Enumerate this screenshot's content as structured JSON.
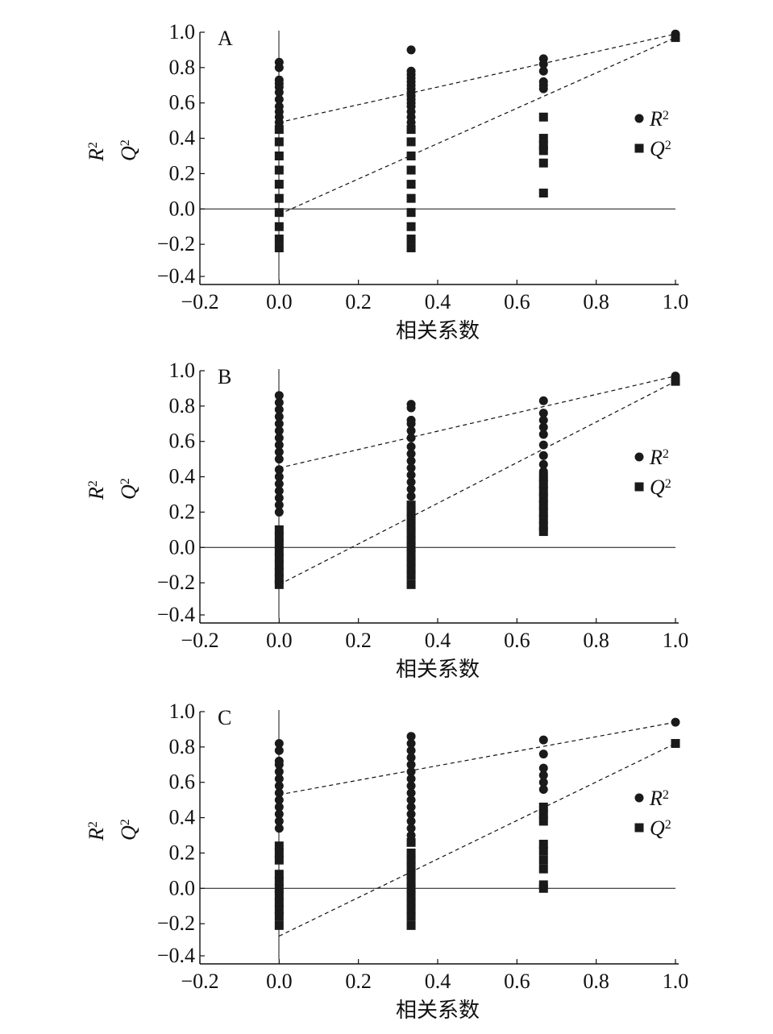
{
  "chart_data": [
    {
      "type": "scatter",
      "panel_label": "A",
      "xlabel": "相关系数",
      "ylabel_r2": "R²",
      "ylabel_q2": "Q²",
      "xlim": [
        -0.2,
        1.0
      ],
      "ylim": [
        -0.4,
        1.0
      ],
      "x_ticks": [
        "−0.2",
        "0.0",
        "0.2",
        "0.4",
        "0.6",
        "0.8",
        "1.0"
      ],
      "y_ticks": [
        "1.0",
        "0.8",
        "0.6",
        "0.4",
        "0.2",
        "0.0",
        "−0.2",
        "−0.4"
      ],
      "legend": [
        "R²",
        "Q²"
      ],
      "series": [
        {
          "name": "R²",
          "marker": "circle",
          "points": [
            [
              0.0,
              0.83
            ],
            [
              0.0,
              0.8
            ],
            [
              0.0,
              0.73
            ],
            [
              0.0,
              0.71
            ],
            [
              0.0,
              0.69
            ],
            [
              0.0,
              0.66
            ],
            [
              0.0,
              0.62
            ],
            [
              0.0,
              0.58
            ],
            [
              0.0,
              0.55
            ],
            [
              0.0,
              0.52
            ],
            [
              0.0,
              0.49
            ],
            [
              0.333,
              0.9
            ],
            [
              0.333,
              0.78
            ],
            [
              0.333,
              0.76
            ],
            [
              0.333,
              0.74
            ],
            [
              0.333,
              0.72
            ],
            [
              0.333,
              0.7
            ],
            [
              0.333,
              0.68
            ],
            [
              0.333,
              0.66
            ],
            [
              0.333,
              0.64
            ],
            [
              0.333,
              0.62
            ],
            [
              0.333,
              0.6
            ],
            [
              0.333,
              0.58
            ],
            [
              0.333,
              0.55
            ],
            [
              0.333,
              0.52
            ],
            [
              0.333,
              0.49
            ],
            [
              0.667,
              0.85
            ],
            [
              0.667,
              0.82
            ],
            [
              0.667,
              0.78
            ],
            [
              0.667,
              0.72
            ],
            [
              0.667,
              0.7
            ],
            [
              0.667,
              0.68
            ],
            [
              1.0,
              0.99
            ]
          ]
        },
        {
          "name": "Q²",
          "marker": "square",
          "points": [
            [
              0.0,
              0.45
            ],
            [
              0.0,
              0.38
            ],
            [
              0.0,
              0.3
            ],
            [
              0.0,
              0.22
            ],
            [
              0.0,
              0.14
            ],
            [
              0.0,
              0.06
            ],
            [
              0.0,
              -0.02
            ],
            [
              0.0,
              -0.1
            ],
            [
              0.0,
              -0.17
            ],
            [
              0.0,
              -0.22
            ],
            [
              0.333,
              0.45
            ],
            [
              0.333,
              0.38
            ],
            [
              0.333,
              0.3
            ],
            [
              0.333,
              0.22
            ],
            [
              0.333,
              0.14
            ],
            [
              0.333,
              0.06
            ],
            [
              0.333,
              -0.02
            ],
            [
              0.333,
              -0.1
            ],
            [
              0.333,
              -0.17
            ],
            [
              0.333,
              -0.22
            ],
            [
              0.667,
              0.52
            ],
            [
              0.667,
              0.4
            ],
            [
              0.667,
              0.36
            ],
            [
              0.667,
              0.33
            ],
            [
              0.667,
              0.26
            ],
            [
              0.667,
              0.09
            ],
            [
              1.0,
              0.97
            ]
          ]
        }
      ],
      "regression_lines": [
        [
          [
            0.0,
            0.49
          ],
          [
            1.0,
            0.99
          ]
        ],
        [
          [
            0.0,
            -0.03
          ],
          [
            1.0,
            0.97
          ]
        ]
      ]
    },
    {
      "type": "scatter",
      "panel_label": "B",
      "xlabel": "相关系数",
      "ylabel_r2": "R²",
      "ylabel_q2": "Q²",
      "xlim": [
        -0.2,
        1.0
      ],
      "ylim": [
        -0.4,
        1.0
      ],
      "x_ticks": [
        "−0.2",
        "0.0",
        "0.2",
        "0.4",
        "0.6",
        "0.8",
        "1.0"
      ],
      "y_ticks": [
        "1.0",
        "0.8",
        "0.6",
        "0.4",
        "0.2",
        "0.0",
        "−0.2",
        "−0.4"
      ],
      "legend": [
        "R²",
        "Q²"
      ],
      "series": [
        {
          "name": "R²",
          "marker": "circle",
          "points": [
            [
              0.0,
              0.86
            ],
            [
              0.0,
              0.82
            ],
            [
              0.0,
              0.78
            ],
            [
              0.0,
              0.74
            ],
            [
              0.0,
              0.7
            ],
            [
              0.0,
              0.66
            ],
            [
              0.0,
              0.62
            ],
            [
              0.0,
              0.58
            ],
            [
              0.0,
              0.54
            ],
            [
              0.0,
              0.5
            ],
            [
              0.0,
              0.44
            ],
            [
              0.0,
              0.4
            ],
            [
              0.0,
              0.36
            ],
            [
              0.0,
              0.32
            ],
            [
              0.0,
              0.28
            ],
            [
              0.0,
              0.24
            ],
            [
              0.0,
              0.2
            ],
            [
              0.333,
              0.81
            ],
            [
              0.333,
              0.79
            ],
            [
              0.333,
              0.72
            ],
            [
              0.333,
              0.7
            ],
            [
              0.333,
              0.66
            ],
            [
              0.333,
              0.62
            ],
            [
              0.333,
              0.57
            ],
            [
              0.333,
              0.53
            ],
            [
              0.333,
              0.49
            ],
            [
              0.333,
              0.45
            ],
            [
              0.333,
              0.41
            ],
            [
              0.333,
              0.37
            ],
            [
              0.333,
              0.33
            ],
            [
              0.333,
              0.29
            ],
            [
              0.667,
              0.83
            ],
            [
              0.667,
              0.76
            ],
            [
              0.667,
              0.72
            ],
            [
              0.667,
              0.68
            ],
            [
              0.667,
              0.64
            ],
            [
              0.667,
              0.58
            ],
            [
              0.667,
              0.52
            ],
            [
              0.667,
              0.47
            ],
            [
              0.667,
              0.43
            ],
            [
              1.0,
              0.97
            ]
          ]
        },
        {
          "name": "Q²",
          "marker": "square",
          "points": [
            [
              0.0,
              0.1
            ],
            [
              0.0,
              0.06
            ],
            [
              0.0,
              0.02
            ],
            [
              0.0,
              -0.02
            ],
            [
              0.0,
              -0.06
            ],
            [
              0.0,
              -0.1
            ],
            [
              0.0,
              -0.14
            ],
            [
              0.0,
              -0.18
            ],
            [
              0.0,
              -0.21
            ],
            [
              0.333,
              0.24
            ],
            [
              0.333,
              0.2
            ],
            [
              0.333,
              0.16
            ],
            [
              0.333,
              0.12
            ],
            [
              0.333,
              0.08
            ],
            [
              0.333,
              0.04
            ],
            [
              0.333,
              0.0
            ],
            [
              0.333,
              -0.04
            ],
            [
              0.333,
              -0.08
            ],
            [
              0.333,
              -0.12
            ],
            [
              0.333,
              -0.16
            ],
            [
              0.333,
              -0.21
            ],
            [
              0.667,
              0.4
            ],
            [
              0.667,
              0.36
            ],
            [
              0.667,
              0.32
            ],
            [
              0.667,
              0.28
            ],
            [
              0.667,
              0.24
            ],
            [
              0.667,
              0.2
            ],
            [
              0.667,
              0.16
            ],
            [
              0.667,
              0.12
            ],
            [
              0.667,
              0.09
            ],
            [
              1.0,
              0.94
            ]
          ]
        }
      ],
      "regression_lines": [
        [
          [
            0.0,
            0.45
          ],
          [
            1.0,
            0.97
          ]
        ],
        [
          [
            0.0,
            -0.21
          ],
          [
            1.0,
            0.94
          ]
        ]
      ]
    },
    {
      "type": "scatter",
      "panel_label": "C",
      "xlabel": "相关系数",
      "ylabel_r2": "R²",
      "ylabel_q2": "Q²",
      "xlim": [
        -0.2,
        1.0
      ],
      "ylim": [
        -0.4,
        1.0
      ],
      "x_ticks": [
        "−0.2",
        "0.0",
        "0.2",
        "0.4",
        "0.6",
        "0.8",
        "1.0"
      ],
      "y_ticks": [
        "1.0",
        "0.8",
        "0.6",
        "0.4",
        "0.2",
        "0.0",
        "−0.2",
        "−0.4"
      ],
      "legend": [
        "R²",
        "Q²"
      ],
      "series": [
        {
          "name": "R²",
          "marker": "circle",
          "points": [
            [
              0.0,
              0.82
            ],
            [
              0.0,
              0.78
            ],
            [
              0.0,
              0.72
            ],
            [
              0.0,
              0.7
            ],
            [
              0.0,
              0.66
            ],
            [
              0.0,
              0.62
            ],
            [
              0.0,
              0.58
            ],
            [
              0.0,
              0.54
            ],
            [
              0.0,
              0.5
            ],
            [
              0.0,
              0.46
            ],
            [
              0.0,
              0.42
            ],
            [
              0.0,
              0.38
            ],
            [
              0.0,
              0.34
            ],
            [
              0.333,
              0.86
            ],
            [
              0.333,
              0.82
            ],
            [
              0.333,
              0.78
            ],
            [
              0.333,
              0.74
            ],
            [
              0.333,
              0.7
            ],
            [
              0.333,
              0.66
            ],
            [
              0.333,
              0.62
            ],
            [
              0.333,
              0.58
            ],
            [
              0.333,
              0.54
            ],
            [
              0.333,
              0.5
            ],
            [
              0.333,
              0.46
            ],
            [
              0.333,
              0.42
            ],
            [
              0.333,
              0.38
            ],
            [
              0.333,
              0.34
            ],
            [
              0.333,
              0.3
            ],
            [
              0.667,
              0.84
            ],
            [
              0.667,
              0.76
            ],
            [
              0.667,
              0.68
            ],
            [
              0.667,
              0.64
            ],
            [
              0.667,
              0.6
            ],
            [
              0.667,
              0.56
            ],
            [
              1.0,
              0.94
            ]
          ]
        },
        {
          "name": "Q²",
          "marker": "square",
          "points": [
            [
              0.0,
              0.24
            ],
            [
              0.0,
              0.2
            ],
            [
              0.0,
              0.16
            ],
            [
              0.0,
              0.08
            ],
            [
              0.0,
              0.04
            ],
            [
              0.0,
              0.0
            ],
            [
              0.0,
              -0.04
            ],
            [
              0.0,
              -0.08
            ],
            [
              0.0,
              -0.12
            ],
            [
              0.0,
              -0.16
            ],
            [
              0.0,
              -0.21
            ],
            [
              0.333,
              0.26
            ],
            [
              0.333,
              0.2
            ],
            [
              0.333,
              0.16
            ],
            [
              0.333,
              0.12
            ],
            [
              0.333,
              0.08
            ],
            [
              0.333,
              0.04
            ],
            [
              0.333,
              0.0
            ],
            [
              0.333,
              -0.04
            ],
            [
              0.333,
              -0.08
            ],
            [
              0.333,
              -0.12
            ],
            [
              0.333,
              -0.16
            ],
            [
              0.333,
              -0.21
            ],
            [
              0.667,
              0.46
            ],
            [
              0.667,
              0.42
            ],
            [
              0.667,
              0.38
            ],
            [
              0.667,
              0.25
            ],
            [
              0.667,
              0.21
            ],
            [
              0.667,
              0.16
            ],
            [
              0.667,
              0.11
            ],
            [
              0.667,
              0.02
            ],
            [
              0.667,
              0.0
            ],
            [
              1.0,
              0.82
            ]
          ]
        }
      ],
      "regression_lines": [
        [
          [
            0.0,
            0.53
          ],
          [
            1.0,
            0.94
          ]
        ],
        [
          [
            0.0,
            -0.27
          ],
          [
            1.0,
            0.82
          ]
        ]
      ]
    }
  ]
}
